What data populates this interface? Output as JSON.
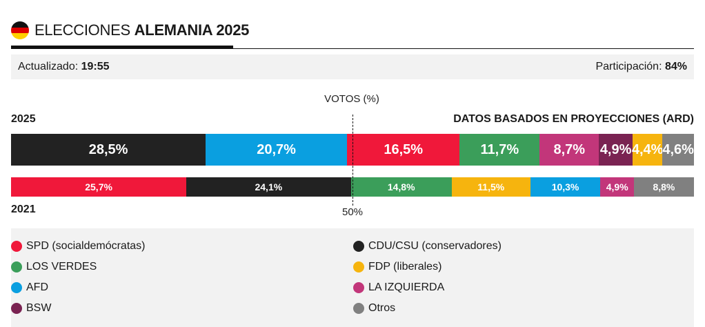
{
  "header": {
    "title_light": "ELECCIONES ",
    "title_bold": "ALEMANIA 2025"
  },
  "info": {
    "updated_label": "Actualizado: ",
    "updated_value": "19:55",
    "turnout_label": "Participación: ",
    "turnout_value": "84%"
  },
  "chart_data": {
    "type": "bar",
    "orientation": "horizontal-stacked",
    "title": "VOTOS (%)",
    "note": "DATOS BASADOS EN PROYECCIONES (ARD)",
    "midline_label": "50%",
    "xlim": [
      0,
      100
    ],
    "series": [
      {
        "name": "2025",
        "segments": [
          {
            "party": "CDU/CSU",
            "value": 28.5,
            "label": "28,5%",
            "color": "#222222"
          },
          {
            "party": "AFD",
            "value": 20.7,
            "label": "20,7%",
            "color": "#0a9fe0"
          },
          {
            "party": "SPD",
            "value": 16.5,
            "label": "16,5%",
            "color": "#f0183a"
          },
          {
            "party": "LOS VERDES",
            "value": 11.7,
            "label": "11,7%",
            "color": "#3b9e5a"
          },
          {
            "party": "LA IZQUIERDA",
            "value": 8.7,
            "label": "8,7%",
            "color": "#c2367a"
          },
          {
            "party": "BSW",
            "value": 4.9,
            "label": "4,9%",
            "color": "#7a2352"
          },
          {
            "party": "FDP",
            "value": 4.4,
            "label": "4,4%",
            "color": "#f6b40e"
          },
          {
            "party": "Otros",
            "value": 4.6,
            "label": "4,6%",
            "color": "#808080"
          }
        ]
      },
      {
        "name": "2021",
        "segments": [
          {
            "party": "SPD",
            "value": 25.7,
            "label": "25,7%",
            "color": "#f0183a"
          },
          {
            "party": "CDU/CSU",
            "value": 24.1,
            "label": "24,1%",
            "color": "#222222"
          },
          {
            "party": "LOS VERDES",
            "value": 14.8,
            "label": "14,8%",
            "color": "#3b9e5a"
          },
          {
            "party": "FDP",
            "value": 11.5,
            "label": "11,5%",
            "color": "#f6b40e"
          },
          {
            "party": "AFD",
            "value": 10.3,
            "label": "10,3%",
            "color": "#0a9fe0"
          },
          {
            "party": "LA IZQUIERDA",
            "value": 4.9,
            "label": "4,9%",
            "color": "#c2367a"
          },
          {
            "party": "Otros",
            "value": 8.8,
            "label": "8,8%",
            "color": "#808080"
          }
        ]
      }
    ]
  },
  "legend": [
    {
      "label": "SPD (socialdemócratas)",
      "color": "#f0183a"
    },
    {
      "label": "CDU/CSU (conservadores)",
      "color": "#222222"
    },
    {
      "label": "LOS VERDES",
      "color": "#3b9e5a"
    },
    {
      "label": "FDP (liberales)",
      "color": "#f6b40e"
    },
    {
      "label": "AFD",
      "color": "#0a9fe0"
    },
    {
      "label": "LA IZQUIERDA",
      "color": "#c2367a"
    },
    {
      "label": "BSW",
      "color": "#7a2352"
    },
    {
      "label": "Otros",
      "color": "#808080"
    }
  ]
}
